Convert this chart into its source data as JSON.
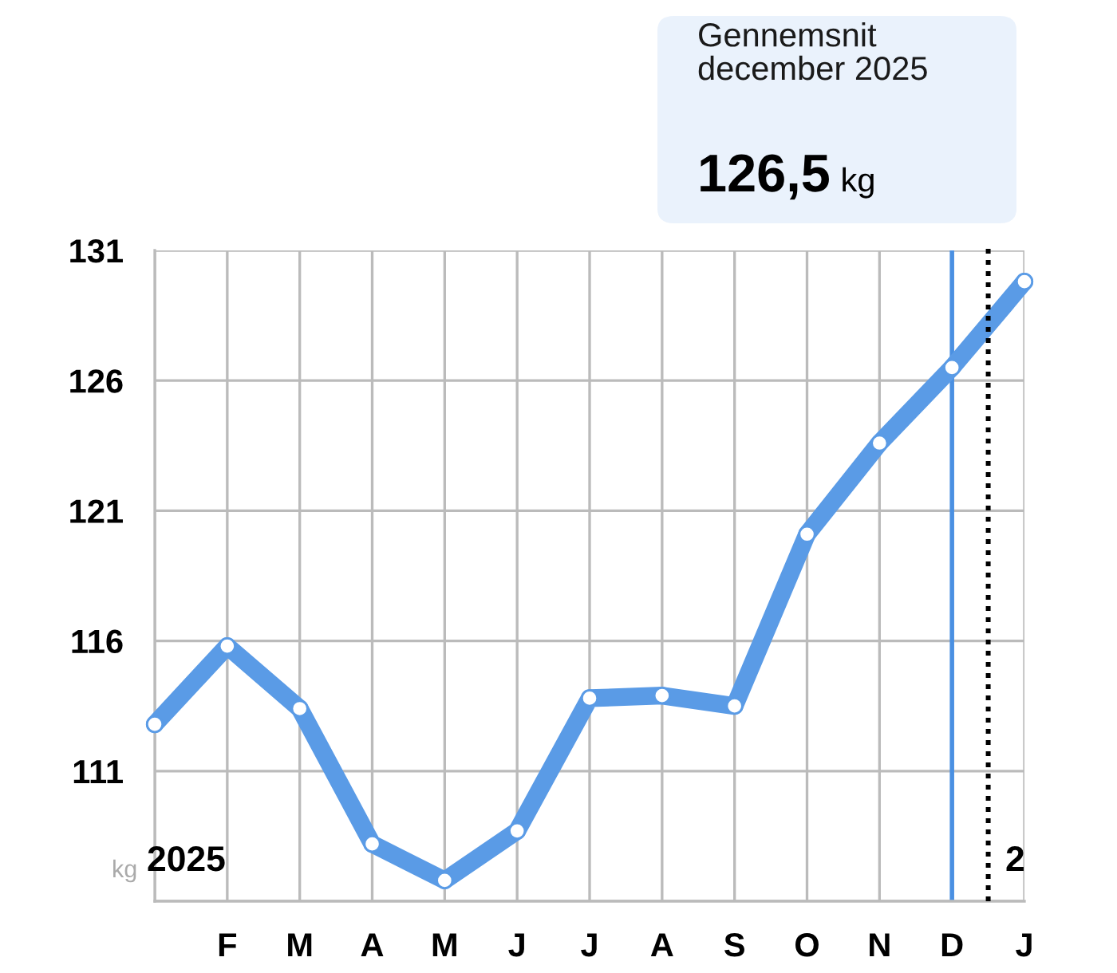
{
  "chart_data": {
    "type": "line",
    "title": "Gennemsnit december 2025",
    "subtitle": "126,5 kg",
    "categories": [
      null,
      "F",
      "M",
      "A",
      "M",
      "J",
      "J",
      "A",
      "S",
      "O",
      "N",
      "D",
      "J"
    ],
    "series": [
      {
        "color": "#5a9be6",
        "values": [
          112.8,
          115.8,
          113.4,
          108.2,
          106.8,
          108.7,
          113.8,
          113.9,
          113.5,
          120.1,
          123.6,
          126.5,
          129.8
        ]
      }
    ],
    "ylim": [
      106,
      131
    ],
    "yticks": [
      {
        "value": 106,
        "label": null
      },
      111,
      116,
      121,
      126,
      131
    ],
    "grid": true,
    "marker": "circle",
    "line_style": "solid",
    "ref_lines": [
      {
        "axis": "x",
        "value": "D",
        "color": "#4a90e2",
        "line_style": "solid"
      }
    ],
    "annotations": [
      "kg",
      "2025",
      "2"
    ]
  }
}
